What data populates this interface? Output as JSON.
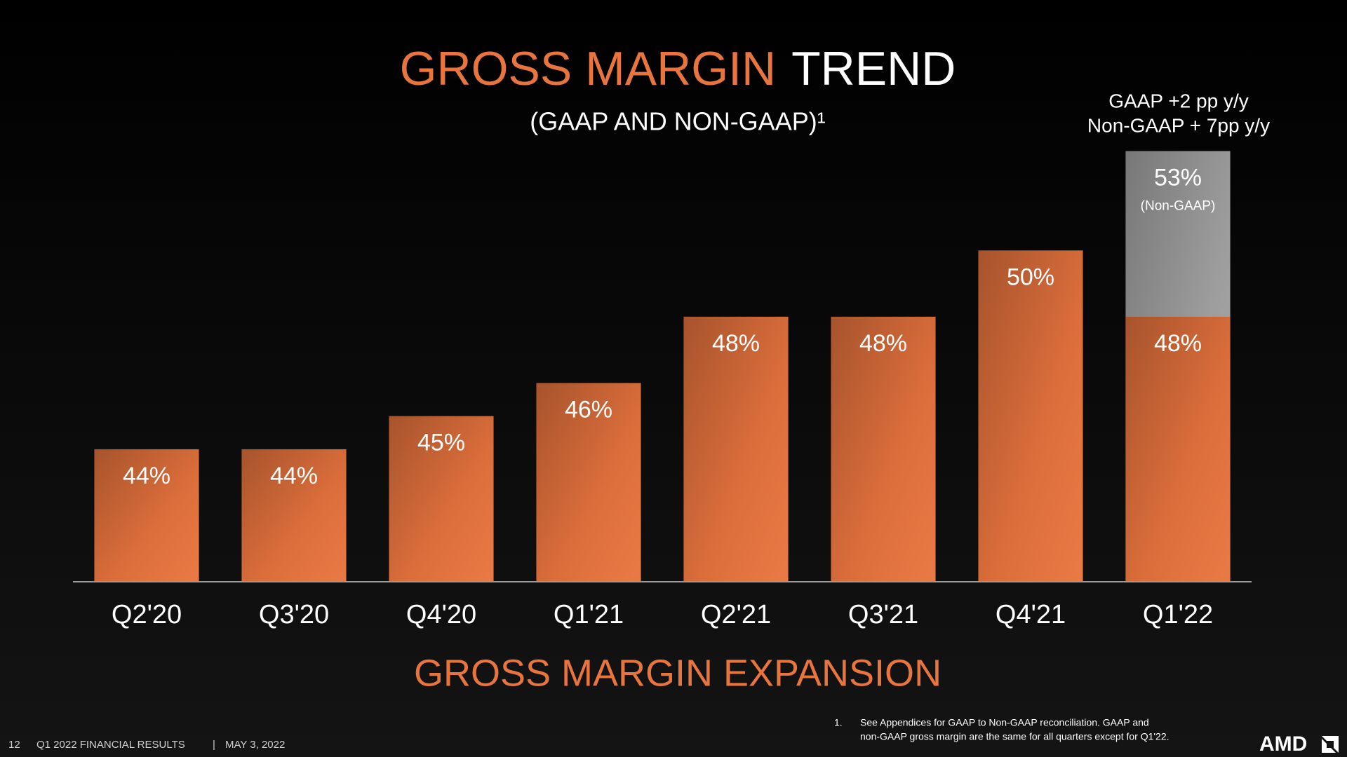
{
  "chart_data": {
    "type": "bar",
    "title": "GROSS MARGIN",
    "title_suffix": "TREND",
    "subtitle": "(GAAP AND NON-GAAP)¹",
    "annotations": [
      "GAAP +2 pp y/y",
      "Non-GAAP + 7pp y/y"
    ],
    "categories": [
      "Q2'20",
      "Q3'20",
      "Q4'20",
      "Q1'21",
      "Q2'21",
      "Q3'21",
      "Q4'21",
      "Q1'22"
    ],
    "series": [
      {
        "label": "(Non-GAAP)",
        "color": "#a6a6a6",
        "values": [
          null,
          null,
          null,
          null,
          null,
          null,
          null,
          53
        ],
        "value_labels": [
          null,
          null,
          null,
          null,
          null,
          null,
          null,
          "53%"
        ]
      },
      {
        "color": "#e8743e",
        "values": [
          44,
          44,
          45,
          46,
          48,
          48,
          50,
          48
        ],
        "value_labels": [
          "44%",
          "44%",
          "45%",
          "46%",
          "48%",
          "48%",
          "50%",
          "48%"
        ]
      }
    ],
    "ylim": [
      40,
      53
    ]
  },
  "slide": {
    "headline": "GROSS MARGIN EXPANSION",
    "footnote": {
      "number": "1.",
      "lines": [
        "See Appendices for GAAP to Non-GAAP reconciliation. GAAP and",
        "non-GAAP gross margin are the same for all quarters except for Q1'22."
      ]
    },
    "footer": {
      "page": "12",
      "text": "Q1 2022 FINANCIAL RESULTS",
      "separator": "|",
      "date": "MAY 3, 2022"
    },
    "logo": "AMD"
  }
}
